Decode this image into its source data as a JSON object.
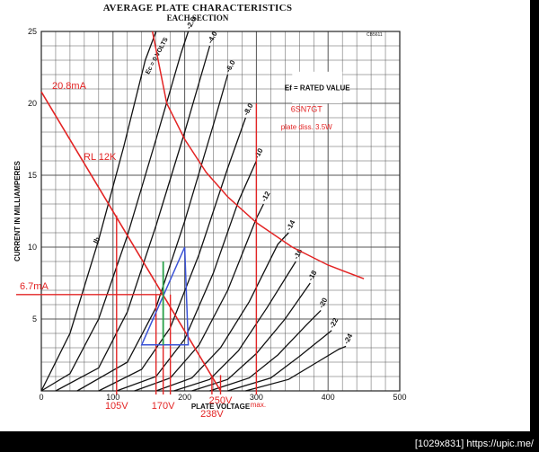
{
  "chart_data": {
    "type": "line",
    "title": "AVERAGE PLATE CHARACTERISTICS",
    "subtitle": "EACH SECTION",
    "xlabel": "PLATE VOLTAGE",
    "ylabel": "CURRENT IN MILLIAMPERES",
    "xlim": [
      0,
      500
    ],
    "ylim": [
      0,
      25
    ],
    "x_ticks": [
      "0",
      "100",
      "200",
      "300",
      "400",
      "500"
    ],
    "y_ticks": [
      "5",
      "10",
      "15",
      "20",
      "25"
    ],
    "grid": true,
    "corner_code": "CB5611",
    "legend_box": {
      "text": "Ef = RATED VALUE"
    },
    "ec_label": "Ec = 0 VOLTS",
    "ib_label": "Ib",
    "curve_labels": [
      "-2.0",
      "-4.0",
      "-6.0",
      "-8.0",
      "-10",
      "-12",
      "-14",
      "-16",
      "-18",
      "-20",
      "-22",
      "-24"
    ],
    "curves": [
      {
        "bias": "0",
        "label_index": -1,
        "points": [
          [
            0,
            0
          ],
          [
            40,
            4
          ],
          [
            80,
            10.5
          ],
          [
            115,
            17
          ],
          [
            145,
            23
          ],
          [
            160,
            25
          ]
        ]
      },
      {
        "bias": "-2",
        "label_index": 0,
        "points": [
          [
            0,
            0
          ],
          [
            40,
            1.2
          ],
          [
            80,
            5
          ],
          [
            120,
            10.8
          ],
          [
            160,
            17.5
          ],
          [
            195,
            23.5
          ],
          [
            205,
            25
          ]
        ]
      },
      {
        "bias": "-4",
        "label_index": 1,
        "points": [
          [
            20,
            0
          ],
          [
            80,
            1.6
          ],
          [
            120,
            5.5
          ],
          [
            160,
            11.5
          ],
          [
            200,
            18
          ],
          [
            235,
            24
          ]
        ]
      },
      {
        "bias": "-6",
        "label_index": 2,
        "points": [
          [
            50,
            0
          ],
          [
            120,
            2
          ],
          [
            160,
            5.8
          ],
          [
            200,
            11.8
          ],
          [
            240,
            18.5
          ],
          [
            260,
            22
          ]
        ]
      },
      {
        "bias": "-8",
        "label_index": 3,
        "points": [
          [
            80,
            0
          ],
          [
            140,
            1.5
          ],
          [
            180,
            4.4
          ],
          [
            220,
            9.5
          ],
          [
            260,
            15.5
          ],
          [
            285,
            19
          ]
        ]
      },
      {
        "bias": "-10",
        "label_index": 4,
        "points": [
          [
            105,
            0
          ],
          [
            160,
            1
          ],
          [
            200,
            3.6
          ],
          [
            240,
            8.2
          ],
          [
            275,
            13.2
          ],
          [
            300,
            16
          ]
        ]
      },
      {
        "bias": "-12",
        "label_index": 5,
        "points": [
          [
            130,
            0
          ],
          [
            180,
            0.9
          ],
          [
            220,
            3.2
          ],
          [
            260,
            7
          ],
          [
            300,
            12
          ],
          [
            310,
            13
          ]
        ]
      },
      {
        "bias": "-14",
        "label_index": 6,
        "points": [
          [
            160,
            0
          ],
          [
            210,
            0.9
          ],
          [
            250,
            3
          ],
          [
            290,
            6.2
          ],
          [
            330,
            10.2
          ],
          [
            345,
            11
          ]
        ]
      },
      {
        "bias": "-16",
        "label_index": 7,
        "points": [
          [
            185,
            0
          ],
          [
            235,
            0.8
          ],
          [
            275,
            2.8
          ],
          [
            315,
            5.8
          ],
          [
            355,
            9
          ]
        ]
      },
      {
        "bias": "-18",
        "label_index": 8,
        "points": [
          [
            210,
            0
          ],
          [
            260,
            0.8
          ],
          [
            300,
            2.6
          ],
          [
            340,
            5
          ],
          [
            375,
            7.5
          ]
        ]
      },
      {
        "bias": "-20",
        "label_index": 9,
        "points": [
          [
            235,
            0
          ],
          [
            290,
            0.9
          ],
          [
            330,
            2.5
          ],
          [
            370,
            4.6
          ],
          [
            390,
            5.6
          ]
        ]
      },
      {
        "bias": "-22",
        "label_index": 10,
        "points": [
          [
            260,
            0
          ],
          [
            320,
            0.9
          ],
          [
            360,
            2.4
          ],
          [
            395,
            3.8
          ],
          [
            405,
            4.2
          ]
        ]
      },
      {
        "bias": "-24",
        "label_index": 11,
        "points": [
          [
            285,
            0
          ],
          [
            345,
            0.8
          ],
          [
            385,
            2
          ],
          [
            415,
            2.9
          ],
          [
            425,
            3.1
          ]
        ]
      }
    ],
    "annotations": {
      "note_tube": "6SN7GT",
      "note_diss": "plate diss. 3.5W",
      "i_top": "20.8mA",
      "i_q": "6.7mA",
      "load": "RL 12K",
      "v_min": "105V",
      "v_q": "170V",
      "v_b": "250V",
      "v_b2": "238V",
      "max_label": "max."
    },
    "load_line": {
      "x": [
        0,
        250
      ],
      "y": [
        20.8,
        0
      ]
    },
    "dissipation_curve": {
      "points": [
        [
          155,
          25
        ],
        [
          175,
          20
        ],
        [
          200,
          17.5
        ],
        [
          230,
          15.2
        ],
        [
          260,
          13.5
        ],
        [
          300,
          11.7
        ],
        [
          350,
          10
        ],
        [
          400,
          8.75
        ],
        [
          450,
          7.8
        ]
      ]
    },
    "verticals_red": [
      105,
      160,
      170,
      180,
      238,
      250
    ],
    "vertical_max": {
      "x": 300,
      "y_top": 20
    },
    "hline_q": {
      "y": 6.7,
      "x_end": 170
    },
    "triangle_blue": [
      [
        140,
        3.2
      ],
      [
        200,
        10
      ],
      [
        205,
        3.2
      ]
    ],
    "green_line": {
      "x": 170,
      "y": [
        3.2,
        9
      ]
    },
    "colors": {
      "red": "#e32424",
      "blue": "#3a52d6",
      "green": "#2aa24a",
      "curve": "#111111",
      "grid": "#555555"
    }
  },
  "footer": "[1029x831] https://upic.me/"
}
